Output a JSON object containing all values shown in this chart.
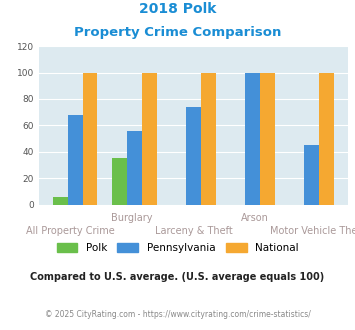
{
  "title_line1": "2018 Polk",
  "title_line2": "Property Crime Comparison",
  "title_color": "#1a8dd4",
  "x_labels_line1": [
    "",
    "Burglary",
    "",
    "Arson",
    ""
  ],
  "x_labels_line2": [
    "All Property Crime",
    "",
    "Larceny & Theft",
    "",
    "Motor Vehicle Theft"
  ],
  "polk_values": [
    6,
    35,
    0,
    0,
    0
  ],
  "pennsylvania_values": [
    68,
    56,
    74,
    100,
    45
  ],
  "national_values": [
    100,
    100,
    100,
    100,
    100
  ],
  "polk_color": "#6abf4b",
  "pennsylvania_color": "#4490d8",
  "national_color": "#f5a831",
  "bg_color": "#ddeaf0",
  "ylim": [
    0,
    120
  ],
  "yticks": [
    0,
    20,
    40,
    60,
    80,
    100,
    120
  ],
  "legend_labels": [
    "Polk",
    "Pennsylvania",
    "National"
  ],
  "note_text": "Compared to U.S. average. (U.S. average equals 100)",
  "note_color": "#222222",
  "footer_text": "© 2025 CityRating.com - https://www.cityrating.com/crime-statistics/",
  "footer_color": "#888888",
  "grid_color": "#ffffff"
}
